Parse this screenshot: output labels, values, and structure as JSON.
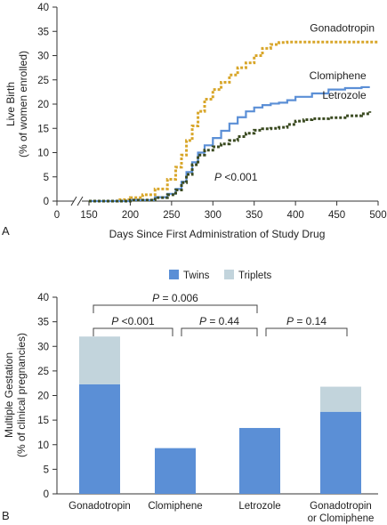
{
  "chart_data": [
    {
      "type": "line",
      "panel_label": "A",
      "xlabel": "Days Since First Administration of Study Drug",
      "ylabel_line1": "Live Birth",
      "ylabel_line2": "(% of women enrolled)",
      "xlim": [
        0,
        500
      ],
      "ylim": [
        0,
        40
      ],
      "x_ticks": [
        0,
        150,
        200,
        250,
        300,
        350,
        400,
        450,
        500
      ],
      "y_ticks": [
        0,
        5,
        10,
        15,
        20,
        25,
        30,
        35,
        40
      ],
      "axis_break_between": [
        0,
        150
      ],
      "annotation": {
        "p_label": "P",
        "p_text": " <0.001"
      },
      "colors": {
        "Gonadotropin": "#d8a62a",
        "Clomiphene": "#5b8fd6",
        "Letrozole": "#3a4a20"
      },
      "series": [
        {
          "name": "Gonadotropin",
          "style": "dotted",
          "x": [
            150,
            185,
            200,
            215,
            230,
            245,
            255,
            262,
            268,
            275,
            282,
            290,
            300,
            310,
            320,
            330,
            340,
            350,
            360,
            370,
            380,
            390,
            400,
            420,
            450,
            470,
            500
          ],
          "y": [
            0,
            0.3,
            0.7,
            1.3,
            2.5,
            4.5,
            7,
            9.5,
            12.5,
            15.5,
            18.5,
            21,
            23,
            24.5,
            26,
            27.5,
            28.5,
            30,
            31.5,
            32.3,
            32.7,
            32.8,
            32.8,
            32.8,
            32.8,
            32.8,
            32.8
          ]
        },
        {
          "name": "Clomiphene",
          "style": "solid",
          "x": [
            150,
            200,
            230,
            245,
            255,
            262,
            268,
            275,
            282,
            290,
            300,
            310,
            320,
            330,
            340,
            350,
            360,
            370,
            380,
            390,
            400,
            420,
            440,
            460,
            480,
            490
          ],
          "y": [
            0,
            0.2,
            0.8,
            1.5,
            2.5,
            4,
            6,
            8,
            10,
            11.5,
            13,
            14.5,
            16,
            17.3,
            18.5,
            19.3,
            19.8,
            20.1,
            20.3,
            20.8,
            21.5,
            22.2,
            23,
            23.3,
            23.5,
            23.5
          ]
        },
        {
          "name": "Letrozole",
          "style": "dotted",
          "x": [
            150,
            200,
            230,
            245,
            255,
            262,
            268,
            275,
            282,
            290,
            300,
            310,
            320,
            330,
            340,
            350,
            360,
            370,
            380,
            390,
            400,
            410,
            420,
            440,
            460,
            480,
            490
          ],
          "y": [
            0,
            0.2,
            0.7,
            1.3,
            2.3,
            3.8,
            5.5,
            7.5,
            9.5,
            10.5,
            11.2,
            11.8,
            12.5,
            13.3,
            14,
            14.6,
            14.9,
            15,
            15.2,
            15.8,
            16.5,
            16.8,
            17,
            17.2,
            17.6,
            18,
            18.5
          ]
        }
      ]
    },
    {
      "type": "bar",
      "stacked": true,
      "panel_label": "B",
      "ylabel_line1": "Multiple Gestation",
      "ylabel_line2": "(% of clinical pregnancies)",
      "ylim": [
        0,
        40
      ],
      "y_ticks": [
        0,
        5,
        10,
        15,
        20,
        25,
        30,
        35,
        40
      ],
      "legend_position": "top",
      "categories": [
        {
          "line1": "Gonadotropin",
          "line2": ""
        },
        {
          "line1": "Clomiphene",
          "line2": ""
        },
        {
          "line1": "Letrozole",
          "line2": ""
        },
        {
          "line1": "Gonadotropin",
          "line2": "or Clomiphene"
        }
      ],
      "series": [
        {
          "name": "Twins",
          "color": "#5b8fd6",
          "values": [
            22.3,
            9.3,
            13.4,
            16.7
          ]
        },
        {
          "name": "Triplets",
          "color": "#c2d4dc",
          "values": [
            9.7,
            0,
            0,
            5.1
          ]
        }
      ],
      "comparisons": [
        {
          "from": 0,
          "to": 1,
          "p_label": "P",
          "text": " <0.001",
          "level": 1
        },
        {
          "from": 1,
          "to": 2,
          "p_label": "P",
          "text": " = 0.44",
          "level": 1
        },
        {
          "from": 2,
          "to": 3,
          "p_label": "P",
          "text": " = 0.14",
          "level": 1
        },
        {
          "from": 0,
          "to": 2,
          "p_label": "P",
          "text": " = 0.006",
          "level": 2
        }
      ]
    }
  ]
}
